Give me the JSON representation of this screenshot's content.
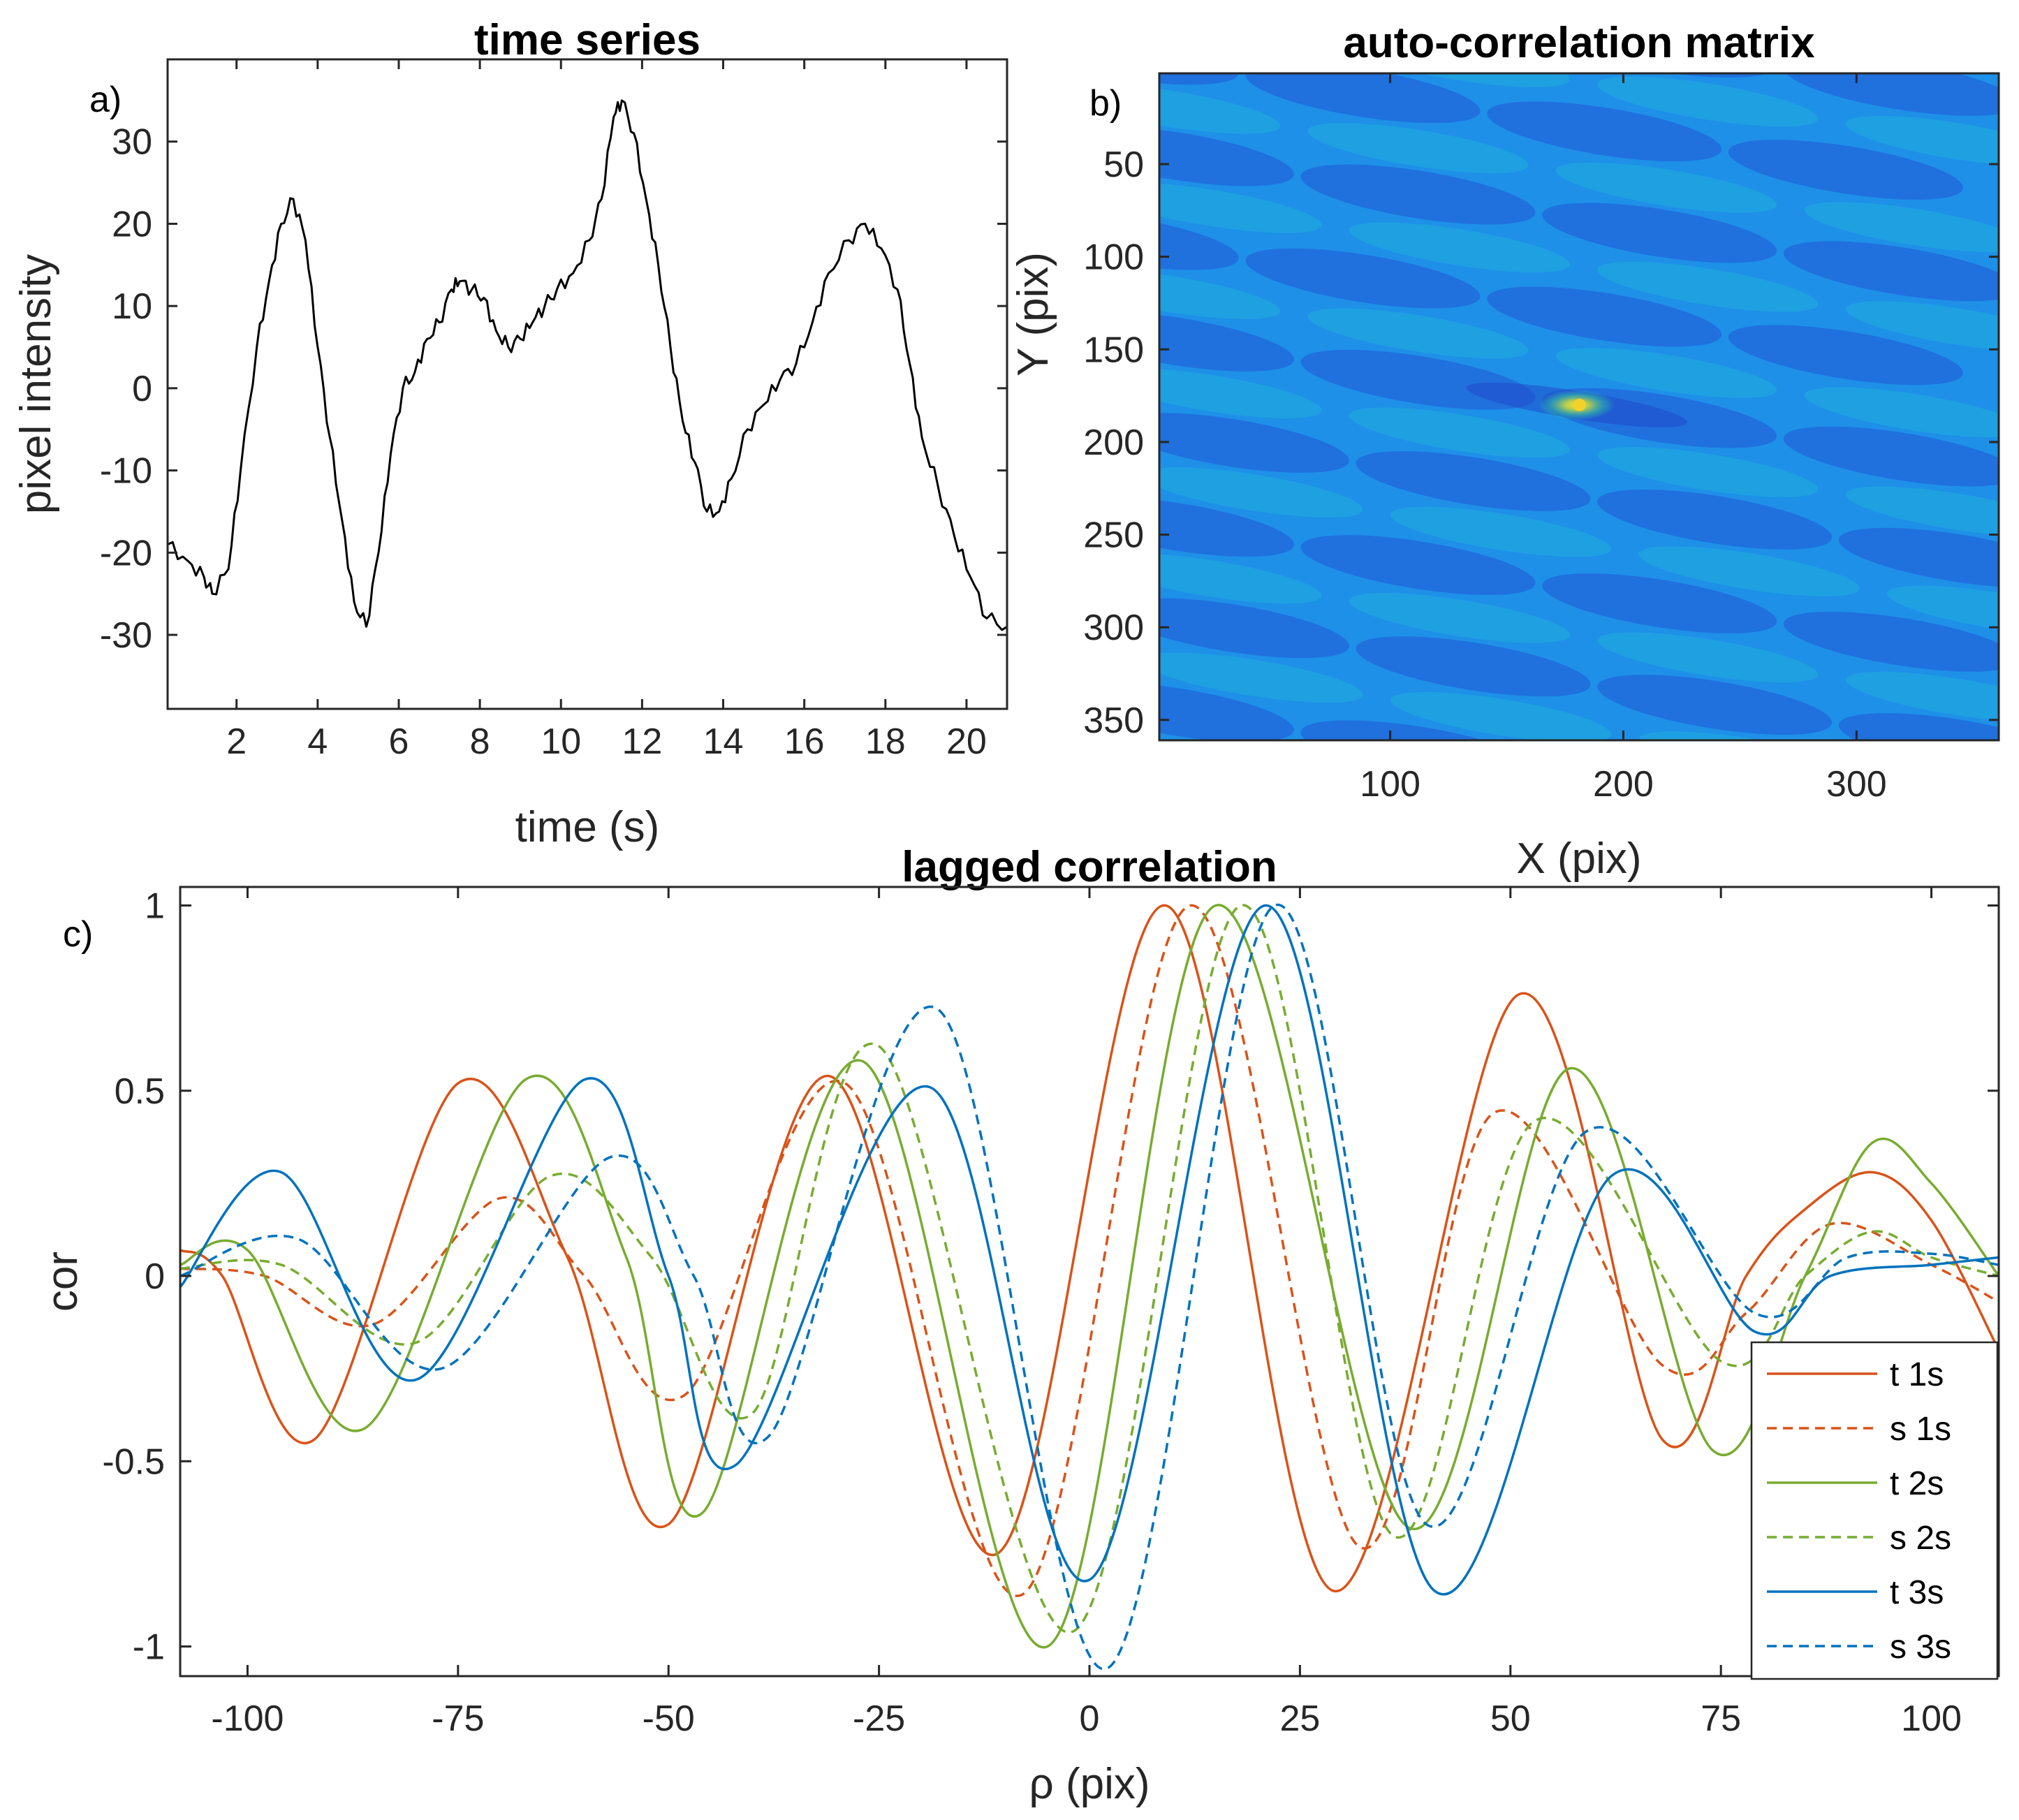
{
  "colors": {
    "orange": "#D95319",
    "green": "#77AC30",
    "blue": "#0072BD",
    "black": "#000000",
    "heat_bg": "#1E90E8",
    "heat_dark": "#2255D6",
    "heat_light": "#1FB8D6",
    "heat_peak": "#F2D22A"
  },
  "chart_data": [
    {
      "type": "line",
      "panel_label": "a)",
      "title": "time series",
      "xlabel": "time (s)",
      "ylabel": "pixel intensity",
      "xlim": [
        0.3,
        21
      ],
      "ylim": [
        -39,
        40
      ],
      "xticks": [
        2,
        4,
        6,
        8,
        10,
        12,
        14,
        16,
        18,
        20
      ],
      "yticks": [
        -30,
        -20,
        -10,
        0,
        10,
        20,
        30
      ],
      "x": [
        0.3,
        0.8,
        1.2,
        1.4,
        1.8,
        2.1,
        2.5,
        2.8,
        3.1,
        3.4,
        3.7,
        4.0,
        4.3,
        4.6,
        4.9,
        5.2,
        5.5,
        5.8,
        6.1,
        6.4,
        6.7,
        7.0,
        7.3,
        7.5,
        7.8,
        8.1,
        8.4,
        8.7,
        9.0,
        9.3,
        9.6,
        9.9,
        10.3,
        10.7,
        11.0,
        11.3,
        11.5,
        11.8,
        12.1,
        12.4,
        12.7,
        13.0,
        13.3,
        13.6,
        13.9,
        14.2,
        14.6,
        15.0,
        15.4,
        15.8,
        16.2,
        16.6,
        17.1,
        17.5,
        17.9,
        18.3,
        18.6,
        18.9,
        19.3,
        19.7,
        20.1,
        20.5,
        21.0
      ],
      "y": [
        -19,
        -21,
        -23,
        -25,
        -22,
        -10,
        5,
        13,
        20,
        23,
        18,
        5,
        -6,
        -16,
        -26,
        -29,
        -20,
        -8,
        0,
        2,
        6,
        8,
        12,
        13,
        12,
        11,
        7,
        5,
        6,
        8,
        10,
        12,
        14,
        18,
        23,
        33,
        35,
        31,
        23,
        15,
        5,
        -4,
        -9,
        -15,
        -15,
        -11,
        -5,
        -2,
        1,
        3,
        8,
        14,
        18,
        20,
        17,
        12,
        3,
        -6,
        -12,
        -18,
        -23,
        -28,
        -29
      ]
    },
    {
      "type": "heatmap",
      "panel_label": "b)",
      "title": "auto-correlation matrix",
      "xlabel": "X (pix)",
      "ylabel": "Y (pix)",
      "xlim": [
        1,
        361
      ],
      "ylim": [
        1,
        361
      ],
      "xticks": [
        100,
        200,
        300
      ],
      "yticks": [
        50,
        100,
        150,
        200,
        250,
        300,
        350
      ],
      "center": [
        180,
        180
      ],
      "stripe_period_y": 50,
      "stripe_tilt": 0.35,
      "peak_value": 1.0,
      "background_value": 0.0
    },
    {
      "type": "line",
      "panel_label": "c)",
      "title": "lagged correlation",
      "xlabel": "ρ (pix)",
      "ylabel": "cor",
      "xlim": [
        -108,
        108
      ],
      "ylim": [
        -1.08,
        1.05
      ],
      "xticks": [
        -100,
        -75,
        -50,
        -25,
        0,
        25,
        50,
        75,
        100
      ],
      "yticks": [
        -1,
        -0.5,
        0,
        0.5,
        1
      ],
      "legend_position": "bottom-right",
      "series": [
        {
          "name": "t 1s",
          "color": "#D95319",
          "style": "solid",
          "x": [
            -108,
            -103,
            -92,
            -75,
            -62,
            -50,
            -31,
            -11,
            9,
            29,
            51,
            68,
            78,
            85,
            93,
            100,
            108
          ],
          "y": [
            0.07,
            0.0,
            -0.44,
            0.52,
            0.05,
            -0.67,
            0.54,
            -0.75,
            1.0,
            -0.85,
            0.76,
            -0.44,
            0.0,
            0.18,
            0.28,
            0.15,
            -0.2
          ]
        },
        {
          "name": "s 1s",
          "color": "#D95319",
          "style": "dashed",
          "x": [
            -108,
            -98,
            -85,
            -70,
            -60,
            -48,
            -29,
            -8,
            12,
            32,
            48,
            68,
            78,
            88,
            100,
            108
          ],
          "y": [
            0.02,
            0.0,
            -0.13,
            0.21,
            0.0,
            -0.32,
            0.52,
            -0.86,
            1.0,
            -0.73,
            0.44,
            -0.24,
            -0.1,
            0.14,
            0.03,
            -0.07
          ]
        },
        {
          "name": "t 2s",
          "color": "#77AC30",
          "style": "solid",
          "x": [
            -108,
            -100,
            -86,
            -67,
            -55,
            -46,
            -27,
            -5,
            15,
            38,
            57,
            74,
            85,
            93,
            100,
            108
          ],
          "y": [
            0.03,
            0.07,
            -0.41,
            0.53,
            0.05,
            -0.64,
            0.58,
            -1.0,
            1.0,
            -0.68,
            0.56,
            -0.47,
            0.0,
            0.36,
            0.25,
            0.0
          ]
        },
        {
          "name": "s 2s",
          "color": "#77AC30",
          "style": "dashed",
          "x": [
            -108,
            -96,
            -80,
            -64,
            -52,
            -40,
            -25,
            -2,
            18,
            36,
            53,
            75,
            85,
            93,
            100,
            108
          ],
          "y": [
            0.02,
            0.03,
            -0.18,
            0.27,
            0.05,
            -0.37,
            0.62,
            -0.96,
            1.0,
            -0.7,
            0.42,
            -0.23,
            0.0,
            0.12,
            0.05,
            0.0
          ]
        },
        {
          "name": "t 3s",
          "color": "#0072BD",
          "style": "solid",
          "x": [
            -108,
            -96,
            -80,
            -60,
            -50,
            -42,
            -19,
            0,
            21,
            41,
            62,
            79,
            88,
            100,
            108
          ],
          "y": [
            -0.03,
            0.28,
            -0.28,
            0.53,
            0.0,
            -0.51,
            0.51,
            -0.82,
            1.0,
            -0.85,
            0.27,
            -0.15,
            0.0,
            0.03,
            0.05
          ]
        },
        {
          "name": "s 3s",
          "color": "#0072BD",
          "style": "dashed",
          "x": [
            -108,
            -94,
            -77,
            -57,
            -47,
            -38,
            -18,
            2,
            22,
            40,
            59,
            79,
            90,
            100,
            108
          ],
          "y": [
            0.0,
            0.1,
            -0.25,
            0.32,
            0.0,
            -0.43,
            0.72,
            -1.06,
            1.0,
            -0.67,
            0.39,
            -0.1,
            0.05,
            0.06,
            0.03
          ]
        }
      ]
    }
  ]
}
